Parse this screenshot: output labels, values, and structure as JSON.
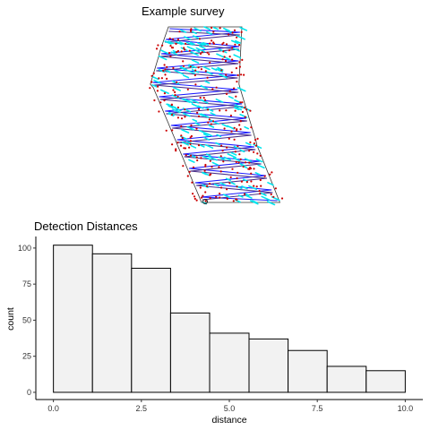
{
  "chart_data": [
    {
      "type": "map",
      "title": "Example survey",
      "colors": {
        "transect": "#1a1aff",
        "segment": "#00e5ee",
        "detection": "#cc0000",
        "outline": "#333333"
      }
    },
    {
      "type": "bar",
      "title": "Detection Distances",
      "xlabel": "distance",
      "ylabel": "count",
      "bins": [
        {
          "x0": 0.0,
          "x1": 1.11,
          "count": 102
        },
        {
          "x0": 1.11,
          "x1": 2.22,
          "count": 96
        },
        {
          "x0": 2.22,
          "x1": 3.33,
          "count": 86
        },
        {
          "x0": 3.33,
          "x1": 4.44,
          "count": 55
        },
        {
          "x0": 4.44,
          "x1": 5.56,
          "count": 41
        },
        {
          "x0": 5.56,
          "x1": 6.67,
          "count": 37
        },
        {
          "x0": 6.67,
          "x1": 7.78,
          "count": 29
        },
        {
          "x0": 7.78,
          "x1": 8.89,
          "count": 18
        },
        {
          "x0": 8.89,
          "x1": 10.0,
          "count": 15
        }
      ],
      "xlim": [
        -0.5,
        10.5
      ],
      "ylim": [
        -5,
        108
      ],
      "xticks": [
        0.0,
        2.5,
        5.0,
        7.5,
        10.0
      ],
      "xtick_labels": [
        "0.0",
        "2.5",
        "5.0",
        "7.5",
        "10.0"
      ],
      "yticks": [
        0,
        25,
        50,
        75,
        100
      ],
      "ytick_labels": [
        "0",
        "25",
        "50",
        "75",
        "100"
      ],
      "bar_fill": "#f2f2f2",
      "bar_stroke": "#000000",
      "grid": false
    }
  ]
}
